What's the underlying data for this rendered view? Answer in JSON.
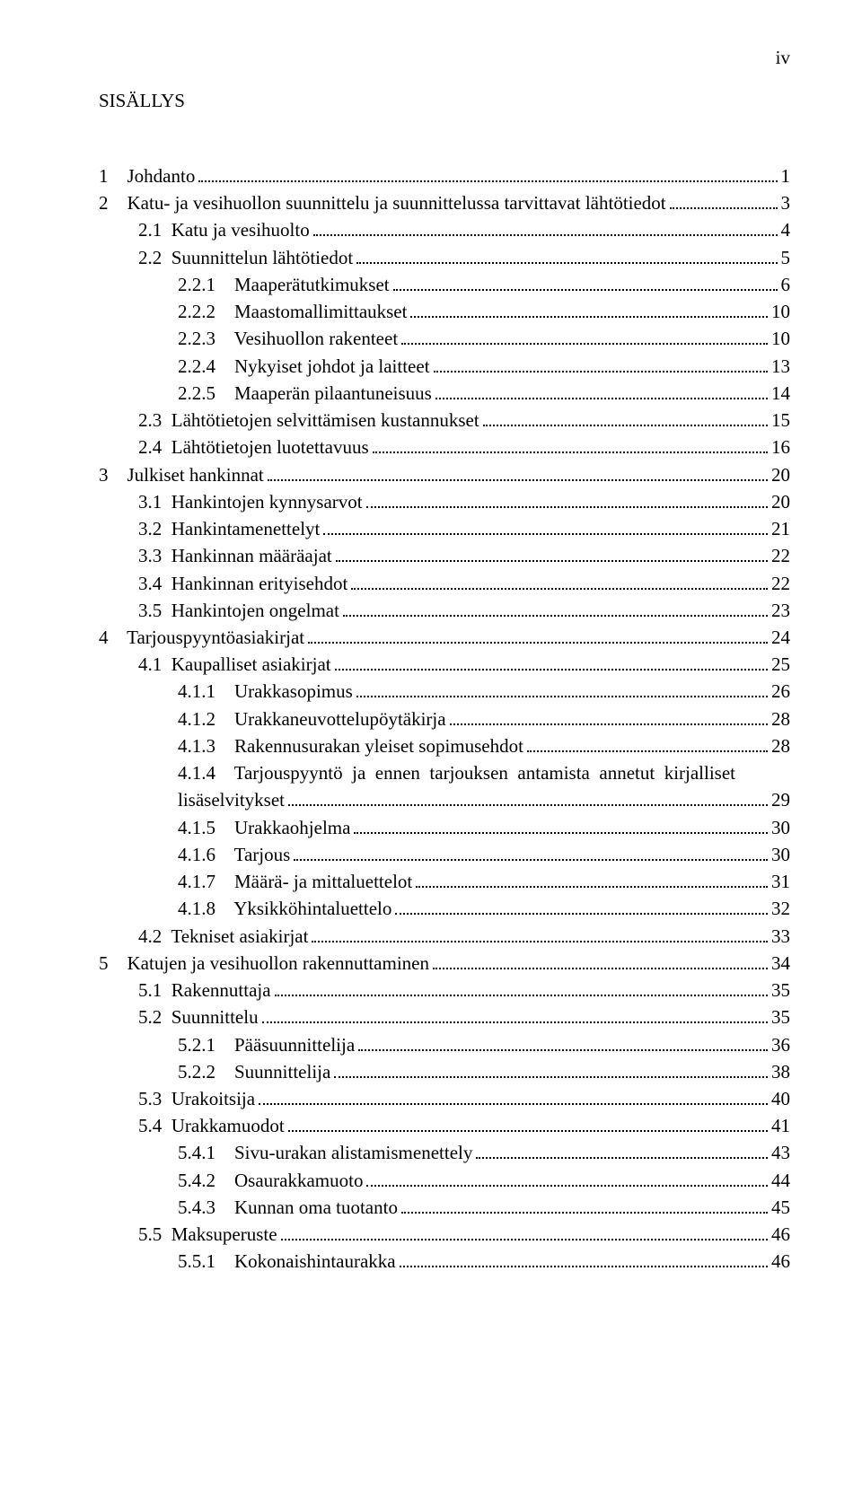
{
  "pageNumber": "iv",
  "title": "SISÄLLYS",
  "font": {
    "family": "Times New Roman",
    "size_pt": 16,
    "color": "#000000"
  },
  "background": "#ffffff",
  "toc": [
    {
      "level": 0,
      "label": "1    Johdanto",
      "page": "1"
    },
    {
      "level": 0,
      "label": "2    Katu- ja vesihuollon suunnittelu ja suunnittelussa tarvittavat lähtötiedot",
      "page": "3"
    },
    {
      "level": 1,
      "label": "2.1  Katu ja vesihuolto",
      "page": "4"
    },
    {
      "level": 1,
      "label": "2.2  Suunnittelun lähtötiedot",
      "page": "5"
    },
    {
      "level": 2,
      "label": "2.2.1    Maaperätutkimukset",
      "page": "6"
    },
    {
      "level": 2,
      "label": "2.2.2    Maastomallimittaukset",
      "page": "10"
    },
    {
      "level": 2,
      "label": "2.2.3    Vesihuollon rakenteet",
      "page": "10"
    },
    {
      "level": 2,
      "label": "2.2.4    Nykyiset johdot ja laitteet",
      "page": "13"
    },
    {
      "level": 2,
      "label": "2.2.5    Maaperän pilaantuneisuus",
      "page": "14"
    },
    {
      "level": 1,
      "label": "2.3  Lähtötietojen selvittämisen kustannukset",
      "page": "15"
    },
    {
      "level": 1,
      "label": "2.4  Lähtötietojen luotettavuus",
      "page": "16"
    },
    {
      "level": 0,
      "label": "3    Julkiset hankinnat",
      "page": "20"
    },
    {
      "level": 1,
      "label": "3.1  Hankintojen kynnysarvot",
      "page": "20"
    },
    {
      "level": 1,
      "label": "3.2  Hankintamenettelyt",
      "page": "21"
    },
    {
      "level": 1,
      "label": "3.3  Hankinnan määräajat",
      "page": "22"
    },
    {
      "level": 1,
      "label": "3.4  Hankinnan erityisehdot",
      "page": "22"
    },
    {
      "level": 1,
      "label": "3.5  Hankintojen ongelmat",
      "page": "23"
    },
    {
      "level": 0,
      "label": "4    Tarjouspyyntöasiakirjat",
      "page": "24"
    },
    {
      "level": 1,
      "label": "4.1  Kaupalliset asiakirjat",
      "page": "25"
    },
    {
      "level": 2,
      "label": "4.1.1    Urakkasopimus",
      "page": "26"
    },
    {
      "level": 2,
      "label": "4.1.2    Urakkaneuvottelupöytäkirja",
      "page": "28"
    },
    {
      "level": 2,
      "label": "4.1.3    Rakennusurakan yleiset sopimusehdot",
      "page": "28"
    },
    {
      "level": 2,
      "label": "4.1.4    Tarjouspyyntö  ja  ennen  tarjouksen  antamista  annetut  kirjalliset",
      "wrap": "lisäselvitykset",
      "page": "29"
    },
    {
      "level": 2,
      "label": "4.1.5    Urakkaohjelma",
      "page": "30"
    },
    {
      "level": 2,
      "label": "4.1.6    Tarjous",
      "page": "30"
    },
    {
      "level": 2,
      "label": "4.1.7    Määrä- ja mittaluettelot",
      "page": "31"
    },
    {
      "level": 2,
      "label": "4.1.8    Yksikköhintaluettelo",
      "page": "32"
    },
    {
      "level": 1,
      "label": "4.2  Tekniset asiakirjat",
      "page": "33"
    },
    {
      "level": 0,
      "label": "5    Katujen ja vesihuollon rakennuttaminen",
      "page": "34"
    },
    {
      "level": 1,
      "label": "5.1  Rakennuttaja",
      "page": "35"
    },
    {
      "level": 1,
      "label": "5.2  Suunnittelu",
      "page": "35"
    },
    {
      "level": 2,
      "label": "5.2.1    Pääsuunnittelija",
      "page": "36"
    },
    {
      "level": 2,
      "label": "5.2.2    Suunnittelija",
      "page": "38"
    },
    {
      "level": 1,
      "label": "5.3  Urakoitsija",
      "page": "40"
    },
    {
      "level": 1,
      "label": "5.4  Urakkamuodot",
      "page": "41"
    },
    {
      "level": 2,
      "label": "5.4.1    Sivu-urakan alistamismenettely",
      "page": "43"
    },
    {
      "level": 2,
      "label": "5.4.2    Osaurakkamuoto",
      "page": "44"
    },
    {
      "level": 2,
      "label": "5.4.3    Kunnan oma tuotanto",
      "page": "45"
    },
    {
      "level": 1,
      "label": "5.5  Maksuperuste",
      "page": "46"
    },
    {
      "level": 2,
      "label": "5.5.1    Kokonaishintaurakka",
      "page": "46"
    }
  ]
}
